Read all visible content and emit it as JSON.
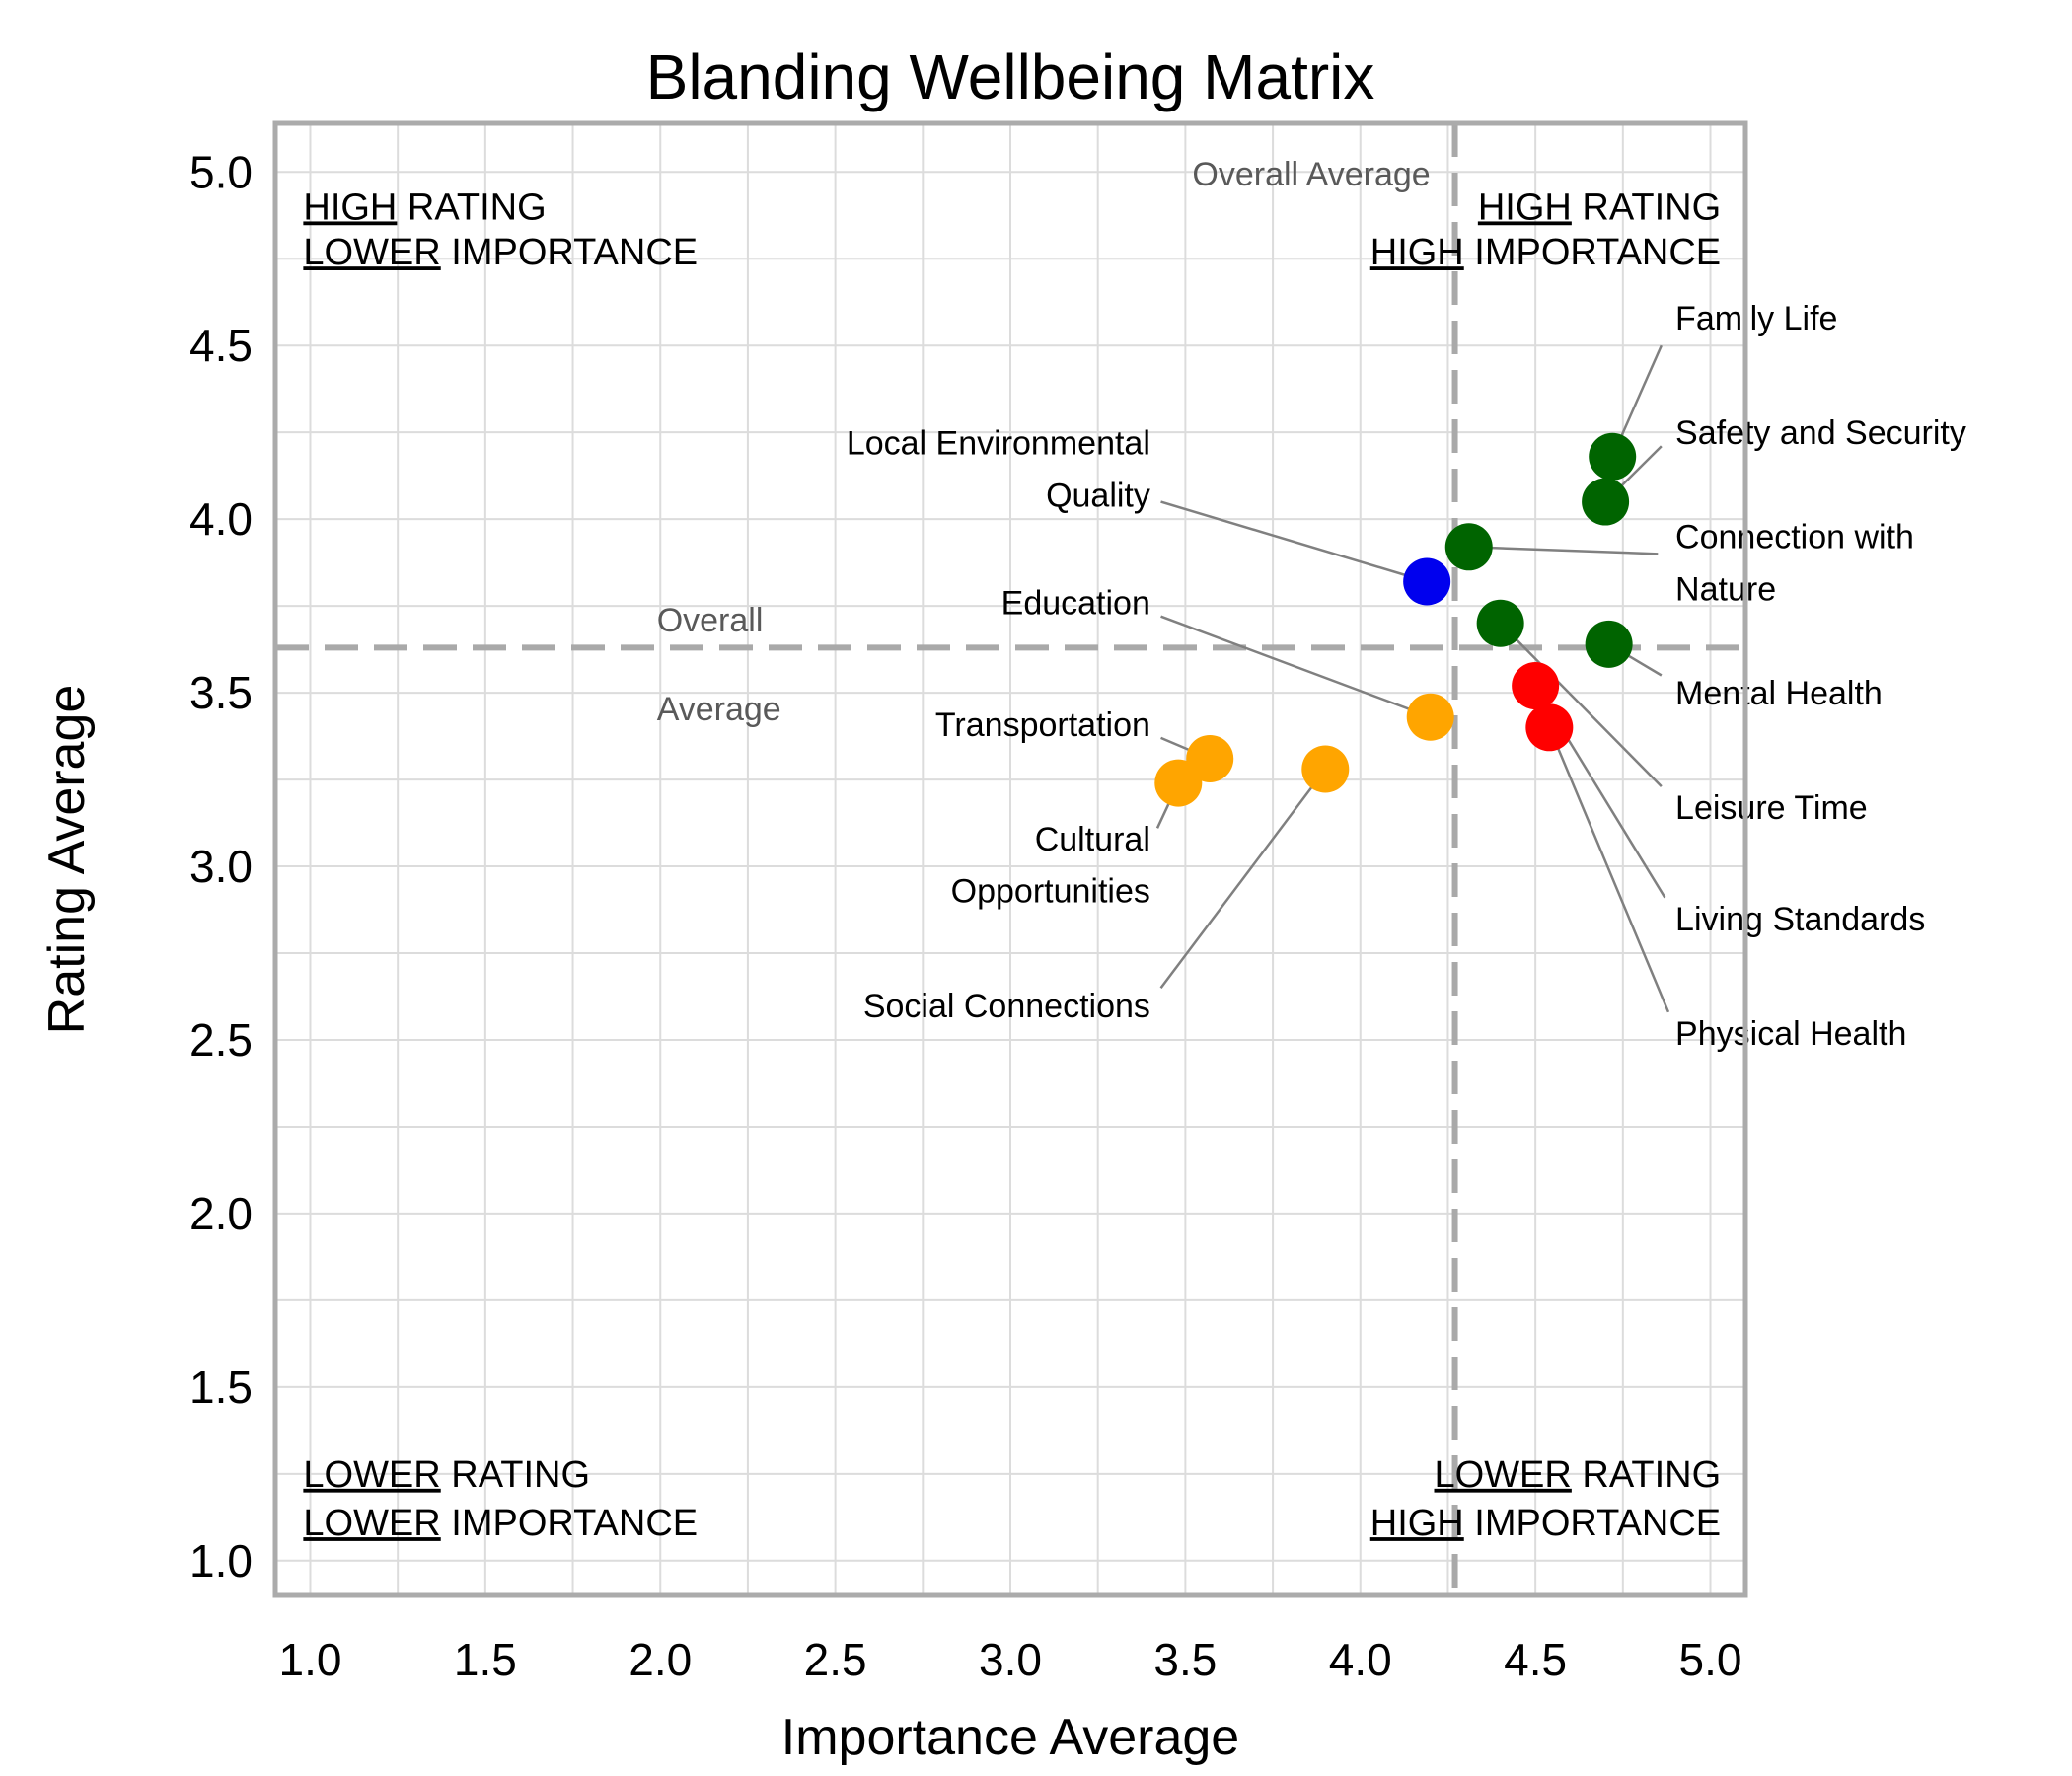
{
  "chart_data": {
    "type": "scatter",
    "title": "Blanding Wellbeing Matrix",
    "xlabel": "Importance Average",
    "ylabel": "Rating Average",
    "xlim": [
      0.9,
      5.1
    ],
    "ylim": [
      0.9,
      5.14
    ],
    "xticks": [
      1.0,
      1.5,
      2.0,
      2.5,
      3.0,
      3.5,
      4.0,
      4.5,
      5.0
    ],
    "yticks": [
      1.0,
      1.5,
      2.0,
      2.5,
      3.0,
      3.5,
      4.0,
      4.5,
      5.0
    ],
    "grid": true,
    "grid_step": 0.25,
    "colors": {
      "high_rating_high_importance": "#006400",
      "high_rating_lower_importance": "#0000ee",
      "lower_rating_lower_importance": "#ffa500",
      "lower_rating_high_importance": "#ff0000",
      "mean_line": "#a9a9a9",
      "mean_label": "#595959",
      "leader_line": "#808080"
    },
    "mean_lines": {
      "importance_avg": 4.27,
      "rating_avg": 3.63,
      "vertical_label": "Overall Average",
      "vertical_label_pos": [
        4.2,
        4.99
      ],
      "horizontal_label_lines": [
        "Overall",
        "Average"
      ],
      "horizontal_label_pos": [
        1.99,
        3.71
      ]
    },
    "quadrant_labels": [
      {
        "id": "top-left",
        "color": "#0000ee",
        "anchor": "start",
        "x": 0.98,
        "y": [
          4.9,
          4.77
        ],
        "lines": [
          {
            "underline": "HIGH",
            "rest": " RATING"
          },
          {
            "underline": "LOWER",
            "rest": " IMPORTANCE"
          }
        ]
      },
      {
        "id": "top-right",
        "color": "#006400",
        "anchor": "end",
        "x": 5.03,
        "y": [
          4.9,
          4.77
        ],
        "lines": [
          {
            "underline": "HIGH",
            "rest": " RATING"
          },
          {
            "underline": "HIGH",
            "rest": " IMPORTANCE"
          }
        ]
      },
      {
        "id": "bottom-left",
        "color": "#ffa500",
        "anchor": "start",
        "x": 0.98,
        "y": [
          1.25,
          1.11
        ],
        "lines": [
          {
            "underline": "LOWER",
            "rest": " RATING"
          },
          {
            "underline": "LOWER",
            "rest": " IMPORTANCE"
          }
        ]
      },
      {
        "id": "bottom-right",
        "color": "#ff0000",
        "anchor": "end",
        "x": 5.03,
        "y": [
          1.25,
          1.11
        ],
        "lines": [
          {
            "underline": "LOWER",
            "rest": " RATING"
          },
          {
            "underline": "HIGH",
            "rest": " IMPORTANCE"
          }
        ]
      }
    ],
    "points": [
      {
        "name": "Family Life",
        "x": 4.72,
        "y": 4.18,
        "color": "#006400",
        "label": {
          "anchor": "start",
          "x": 4.9,
          "lines": [
            "Family Life"
          ],
          "line_y": [
            4.58
          ]
        },
        "leader_start": [
          4.86,
          4.5
        ]
      },
      {
        "name": "Safety and Security",
        "x": 4.7,
        "y": 4.05,
        "color": "#006400",
        "label": {
          "anchor": "start",
          "x": 4.9,
          "lines": [
            "Safety and Security"
          ],
          "line_y": [
            4.25
          ]
        },
        "leader_start": [
          4.86,
          4.21
        ]
      },
      {
        "name": "Connection with Nature",
        "x": 4.31,
        "y": 3.92,
        "color": "#006400",
        "label": {
          "anchor": "start",
          "x": 4.9,
          "lines": [
            "Connection with",
            "Nature"
          ],
          "line_y": [
            3.95,
            3.8
          ]
        },
        "leader_start": [
          4.85,
          3.9
        ]
      },
      {
        "name": "Mental Health",
        "x": 4.71,
        "y": 3.64,
        "color": "#006400",
        "label": {
          "anchor": "start",
          "x": 4.9,
          "lines": [
            "Mental Health"
          ],
          "line_y": [
            3.5
          ]
        },
        "leader_start": [
          4.86,
          3.55
        ]
      },
      {
        "name": "Leisure Time",
        "x": 4.4,
        "y": 3.7,
        "color": "#006400",
        "label": {
          "anchor": "start",
          "x": 4.9,
          "lines": [
            "Leisure Time"
          ],
          "line_y": [
            3.17
          ]
        },
        "leader_start": [
          4.86,
          3.23
        ]
      },
      {
        "name": "Living Standards",
        "x": 4.5,
        "y": 3.52,
        "color": "#ff0000",
        "label": {
          "anchor": "start",
          "x": 4.9,
          "lines": [
            "Living Standards"
          ],
          "line_y": [
            2.85
          ]
        },
        "leader_start": [
          4.87,
          2.91
        ]
      },
      {
        "name": "Physical Health",
        "x": 4.54,
        "y": 3.4,
        "color": "#ff0000",
        "label": {
          "anchor": "start",
          "x": 4.9,
          "lines": [
            "Physical Health"
          ],
          "line_y": [
            2.52
          ]
        },
        "leader_start": [
          4.88,
          2.58
        ]
      },
      {
        "name": "Local Environmental Quality",
        "x": 4.19,
        "y": 3.82,
        "color": "#0000ee",
        "label": {
          "anchor": "end",
          "x": 3.4,
          "lines": [
            "Local Environmental",
            "Quality"
          ],
          "line_y": [
            4.22,
            4.07
          ]
        },
        "leader_start": [
          3.43,
          4.05
        ]
      },
      {
        "name": "Education",
        "x": 4.2,
        "y": 3.43,
        "color": "#ffa500",
        "label": {
          "anchor": "end",
          "x": 3.4,
          "lines": [
            "Education"
          ],
          "line_y": [
            3.76
          ]
        },
        "leader_start": [
          3.43,
          3.72
        ]
      },
      {
        "name": "Transportation",
        "x": 3.57,
        "y": 3.31,
        "color": "#ffa500",
        "label": {
          "anchor": "end",
          "x": 3.4,
          "lines": [
            "Transportation"
          ],
          "line_y": [
            3.41
          ]
        },
        "leader_start": [
          3.43,
          3.37
        ]
      },
      {
        "name": "Cultural Opportunities",
        "x": 3.48,
        "y": 3.24,
        "color": "#ffa500",
        "label": {
          "anchor": "end",
          "x": 3.4,
          "lines": [
            "Cultural",
            "Opportunities"
          ],
          "line_y": [
            3.08,
            2.93
          ]
        },
        "leader_start": [
          3.42,
          3.11
        ]
      },
      {
        "name": "Social Connections",
        "x": 3.9,
        "y": 3.28,
        "color": "#ffa500",
        "label": {
          "anchor": "end",
          "x": 3.4,
          "lines": [
            "Social Connections"
          ],
          "line_y": [
            2.6
          ]
        },
        "leader_start": [
          3.43,
          2.65
        ]
      }
    ]
  }
}
